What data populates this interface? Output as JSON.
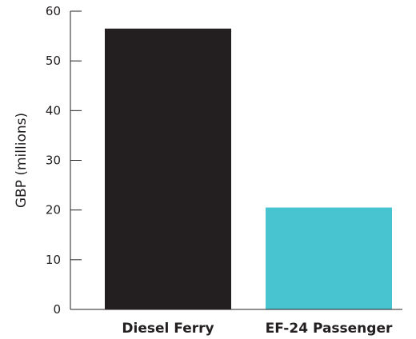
{
  "chart_data": {
    "type": "bar",
    "title": "",
    "xlabel": "",
    "ylabel": "GBP (millions)",
    "ylim": [
      0,
      60
    ],
    "yticks": [
      0,
      10,
      20,
      30,
      40,
      50,
      60
    ],
    "categories": [
      "Diesel Ferry",
      "EF-24 Passenger"
    ],
    "values": [
      56.5,
      20.5
    ],
    "colors": [
      "#231f20",
      "#48c4d0"
    ],
    "grid": false,
    "legend": "none"
  }
}
